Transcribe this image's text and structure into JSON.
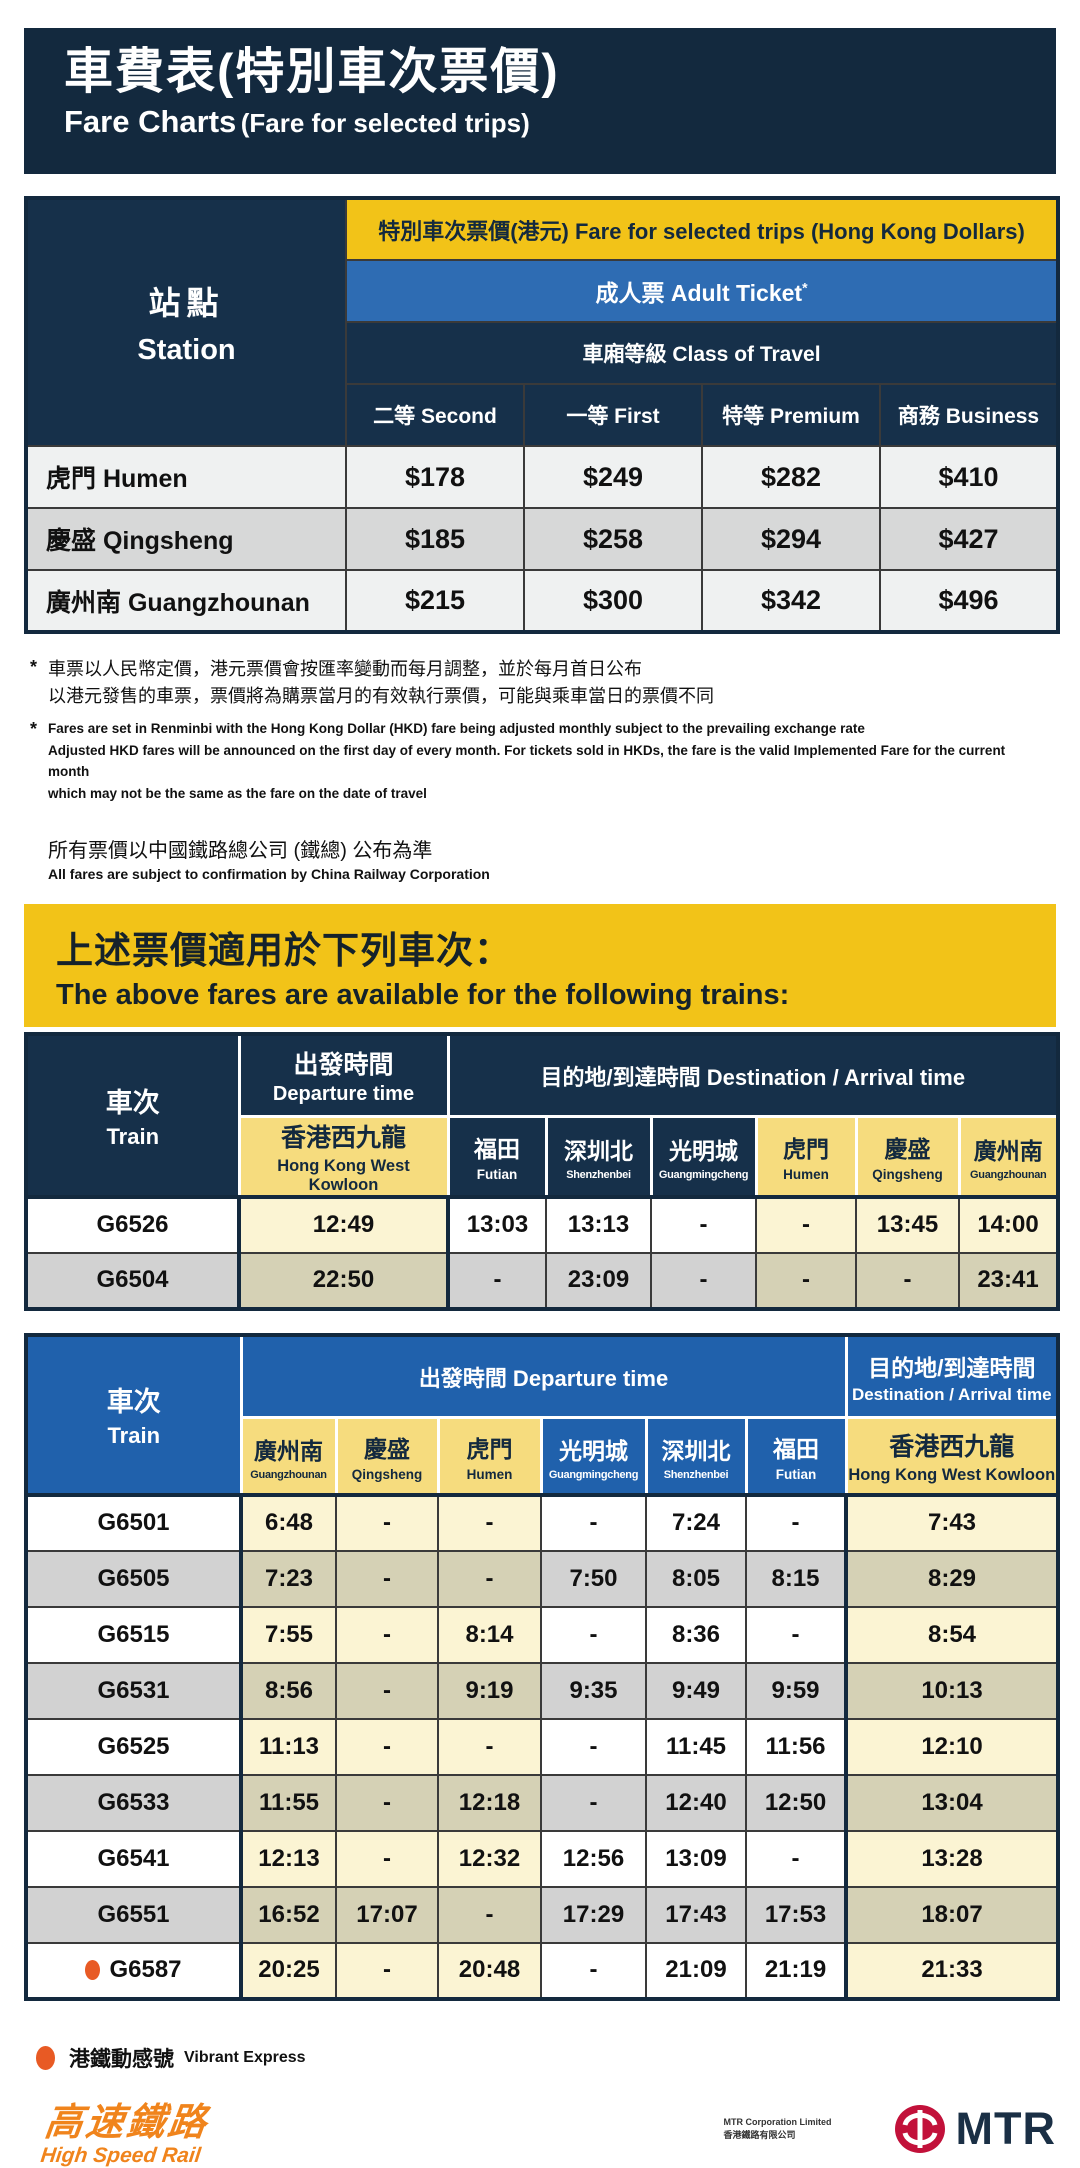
{
  "colors": {
    "navy": "#13293E",
    "header_navy": "#16304A",
    "gold": "#F2C318",
    "light_gold": "#F6DC7E",
    "adult_blue": "#2E6CB3",
    "table3_blue": "#2061AC",
    "cream": "#FBF4D3",
    "khaki": "#D5D1B5",
    "row_gray": "#D2D2D2",
    "vibrant_orange": "#E85A24",
    "mtr_red": "#C2113A",
    "hsr_orange": "#F0841C"
  },
  "header": {
    "title_zh": "車費表(特別車次票價)",
    "title_en_main": "Fare Charts",
    "title_en_sub": "(Fare for selected trips)"
  },
  "fare_table": {
    "station_zh": "站點",
    "station_en": "Station",
    "band1": "特別車次票價(港元) Fare for selected trips (Hong Kong Dollars)",
    "adult_label": "成人票 Adult Ticket",
    "adult_sup": "*",
    "class_label": "車廂等級 Class of Travel",
    "classes": [
      "二等 Second",
      "一等 First",
      "特等 Premium",
      "商務 Business"
    ],
    "rows": [
      {
        "station": "虎門 Humen",
        "fares": [
          "$178",
          "$249",
          "$282",
          "$410"
        ]
      },
      {
        "station": "慶盛 Qingsheng",
        "fares": [
          "$185",
          "$258",
          "$294",
          "$427"
        ]
      },
      {
        "station": "廣州南 Guangzhounan",
        "fares": [
          "$215",
          "$300",
          "$342",
          "$496"
        ]
      }
    ]
  },
  "footnotes": {
    "mark": "*",
    "zh_lines": [
      "車票以人民幣定價，港元票價會按匯率變動而每月調整，並於每月首日公布",
      "以港元發售的車票，票價將為購票當月的有效執行票價，可能與乘車當日的票價不同"
    ],
    "en_lines": [
      "Fares are set in Renminbi with the Hong Kong Dollar (HKD) fare being adjusted monthly subject to the prevailing exchange rate",
      "Adjusted HKD fares will be announced on the first day of every month.  For tickets sold in HKDs, the fare is the valid Implemented Fare for the current month",
      "which may not be the same as the fare on the date of travel"
    ],
    "confirm_zh": "所有票價以中國鐵路總公司 (鐵總) 公布為準",
    "confirm_en": "All fares are subject to confirmation by China Railway Corporation"
  },
  "banner": {
    "zh": "上述票價適用於下列車次：",
    "en": "The above fares are available for the following trains:"
  },
  "table2": {
    "train_zh": "車次",
    "train_en": "Train",
    "departure_zh": "出發時間",
    "departure_en": "Departure time",
    "destination_label": "目的地/到達時間 Destination / Arrival time",
    "stations": [
      {
        "zh": "香港西九龍",
        "en": "Hong Kong West Kowloon",
        "highlight": true
      },
      {
        "zh": "福田",
        "en": "Futian",
        "highlight": false
      },
      {
        "zh": "深圳北",
        "en": "Shenzhenbei",
        "highlight": false
      },
      {
        "zh": "光明城",
        "en": "Guangmingcheng",
        "highlight": false
      },
      {
        "zh": "虎門",
        "en": "Humen",
        "highlight": true
      },
      {
        "zh": "慶盛",
        "en": "Qingsheng",
        "highlight": true
      },
      {
        "zh": "廣州南",
        "en": "Guangzhounan",
        "highlight": true
      }
    ],
    "rows": [
      {
        "train": "G6526",
        "vibrant": false,
        "times": [
          "12:49",
          "13:03",
          "13:13",
          "-",
          "-",
          "13:45",
          "14:00"
        ]
      },
      {
        "train": "G6504",
        "vibrant": false,
        "times": [
          "22:50",
          "-",
          "23:09",
          "-",
          "-",
          "-",
          "23:41"
        ]
      }
    ]
  },
  "table3": {
    "train_zh": "車次",
    "train_en": "Train",
    "departure_label": "出發時間 Departure time",
    "destination_zh": "目的地/到達時間",
    "destination_en": "Destination / Arrival time",
    "stations": [
      {
        "zh": "廣州南",
        "en": "Guangzhounan",
        "highlight": true
      },
      {
        "zh": "慶盛",
        "en": "Qingsheng",
        "highlight": true
      },
      {
        "zh": "虎門",
        "en": "Humen",
        "highlight": true
      },
      {
        "zh": "光明城",
        "en": "Guangmingcheng",
        "highlight": false
      },
      {
        "zh": "深圳北",
        "en": "Shenzhenbei",
        "highlight": false
      },
      {
        "zh": "福田",
        "en": "Futian",
        "highlight": false
      },
      {
        "zh": "香港西九龍",
        "en": "Hong Kong West Kowloon",
        "highlight": true
      }
    ],
    "rows": [
      {
        "train": "G6501",
        "vibrant": false,
        "times": [
          "6:48",
          "-",
          "-",
          "-",
          "7:24",
          "-",
          "7:43"
        ]
      },
      {
        "train": "G6505",
        "vibrant": false,
        "times": [
          "7:23",
          "-",
          "-",
          "7:50",
          "8:05",
          "8:15",
          "8:29"
        ]
      },
      {
        "train": "G6515",
        "vibrant": false,
        "times": [
          "7:55",
          "-",
          "8:14",
          "-",
          "8:36",
          "-",
          "8:54"
        ]
      },
      {
        "train": "G6531",
        "vibrant": false,
        "times": [
          "8:56",
          "-",
          "9:19",
          "9:35",
          "9:49",
          "9:59",
          "10:13"
        ]
      },
      {
        "train": "G6525",
        "vibrant": false,
        "times": [
          "11:13",
          "-",
          "-",
          "-",
          "11:45",
          "11:56",
          "12:10"
        ]
      },
      {
        "train": "G6533",
        "vibrant": false,
        "times": [
          "11:55",
          "-",
          "12:18",
          "-",
          "12:40",
          "12:50",
          "13:04"
        ]
      },
      {
        "train": "G6541",
        "vibrant": false,
        "times": [
          "12:13",
          "-",
          "12:32",
          "12:56",
          "13:09",
          "-",
          "13:28"
        ]
      },
      {
        "train": "G6551",
        "vibrant": false,
        "times": [
          "16:52",
          "17:07",
          "-",
          "17:29",
          "17:43",
          "17:53",
          "18:07"
        ]
      },
      {
        "train": "G6587",
        "vibrant": true,
        "times": [
          "20:25",
          "-",
          "20:48",
          "-",
          "21:09",
          "21:19",
          "21:33"
        ]
      }
    ]
  },
  "legend": {
    "zh": "港鐵動感號",
    "en": "Vibrant Express"
  },
  "footer": {
    "hsr_zh": "高速鐵路",
    "hsr_en": "High Speed Rail",
    "mtr_company_en": "MTR Corporation Limited",
    "mtr_company_zh": "香港鐵路有限公司",
    "mtr_wordmark": "MTR"
  }
}
